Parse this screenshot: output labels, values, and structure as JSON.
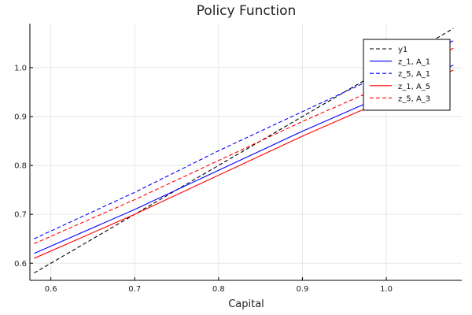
{
  "chart_data": {
    "type": "line",
    "title": "Policy Function",
    "xlabel": "Capital",
    "ylabel": "",
    "xlim": [
      0.575,
      1.09
    ],
    "ylim": [
      0.565,
      1.09
    ],
    "xticks": [
      0.6,
      0.7,
      0.8,
      0.9,
      1.0
    ],
    "xtick_labels": [
      "0.6",
      "0.7",
      "0.8",
      "0.9",
      "1.0"
    ],
    "yticks": [
      0.6,
      0.7,
      0.8,
      0.9,
      1.0
    ],
    "ytick_labels": [
      "0.6",
      "0.7",
      "0.8",
      "0.9",
      "1.0"
    ],
    "grid": true,
    "legend_position": "top-right",
    "series": [
      {
        "name": "y1",
        "color": "#000000",
        "dash": "dashed",
        "x": [
          0.58,
          1.08
        ],
        "y": [
          0.58,
          1.08
        ]
      },
      {
        "name": "z_1, A_1",
        "color": "#0000ff",
        "dash": "solid",
        "x": [
          0.58,
          0.7,
          0.8,
          0.9,
          1.0,
          1.08
        ],
        "y": [
          0.62,
          0.71,
          0.79,
          0.87,
          0.945,
          1.005
        ]
      },
      {
        "name": "z_5, A_1",
        "color": "#0000ff",
        "dash": "dashed",
        "x": [
          0.58,
          0.7,
          0.8,
          0.9,
          1.0,
          1.08
        ],
        "y": [
          0.65,
          0.745,
          0.83,
          0.91,
          0.99,
          1.055
        ]
      },
      {
        "name": "z_1, A_5",
        "color": "#ff0000",
        "dash": "solid",
        "x": [
          0.58,
          0.7,
          0.8,
          0.9,
          1.0,
          1.08
        ],
        "y": [
          0.61,
          0.7,
          0.78,
          0.86,
          0.935,
          0.995
        ]
      },
      {
        "name": "z_5, A_3",
        "color": "#ff0000",
        "dash": "dashed",
        "x": [
          0.58,
          0.7,
          0.8,
          0.9,
          1.0,
          1.08
        ],
        "y": [
          0.64,
          0.73,
          0.81,
          0.89,
          0.965,
          1.04
        ]
      }
    ]
  }
}
